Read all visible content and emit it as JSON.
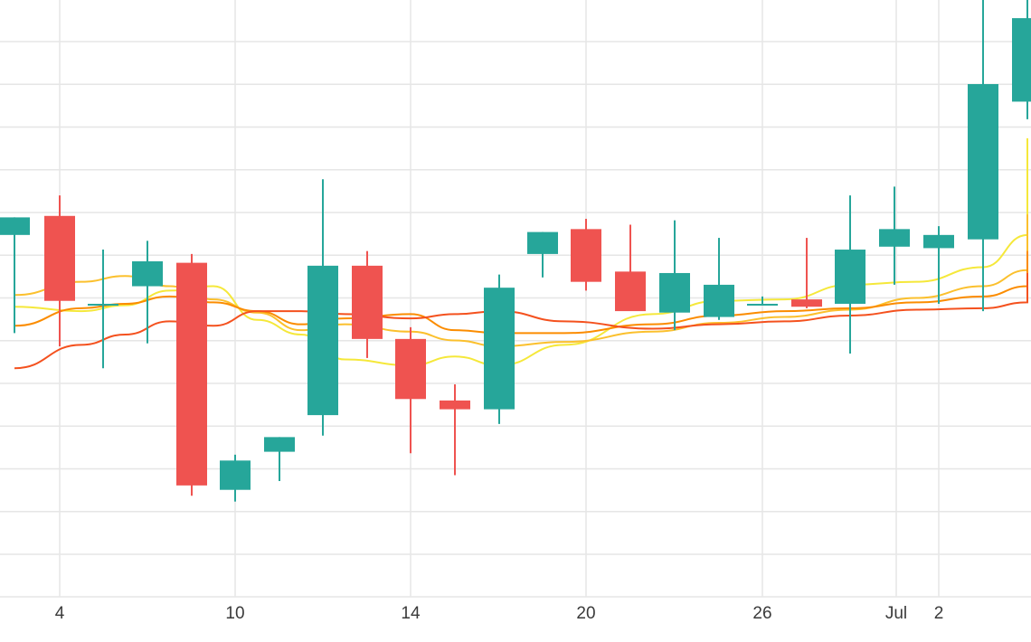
{
  "chart_data": {
    "type": "candlestick",
    "title": "",
    "xlabel": "",
    "ylabel": "",
    "x_axis": {
      "ticks": [
        {
          "day": 4,
          "label": "4"
        },
        {
          "day": 10,
          "label": "10"
        },
        {
          "day": 14,
          "label": "14"
        },
        {
          "day": 20,
          "label": "20"
        },
        {
          "day": 26,
          "label": "26"
        },
        {
          "day": 30,
          "label": "Jul"
        },
        {
          "day": 32,
          "label": "2"
        }
      ]
    },
    "grid": true,
    "up_color": "#26a69a",
    "down_color": "#ef5350",
    "candles": [
      {
        "day": 2,
        "open": 21.8,
        "high": 23.0,
        "low": 15.1,
        "close": 23.0
      },
      {
        "day": 3,
        "open": 23.1,
        "high": 24.5,
        "low": 14.2,
        "close": 17.3
      },
      {
        "day": 4,
        "open": 17.0,
        "high": 20.8,
        "low": 12.7,
        "close": 17.1
      },
      {
        "day": 5,
        "open": 18.3,
        "high": 21.4,
        "low": 14.4,
        "close": 20.0
      },
      {
        "day": 6,
        "open": 19.9,
        "high": 20.5,
        "low": 4.0,
        "close": 4.7
      },
      {
        "day": 7,
        "open": 4.4,
        "high": 6.8,
        "low": 3.6,
        "close": 6.4
      },
      {
        "day": 8,
        "open": 7.0,
        "high": 8.0,
        "low": 5.0,
        "close": 8.0
      },
      {
        "day": 9,
        "open": 9.5,
        "high": 25.6,
        "low": 8.1,
        "close": 19.7
      },
      {
        "day": 10,
        "open": 19.7,
        "high": 20.7,
        "low": 13.4,
        "close": 14.7
      },
      {
        "day": 11,
        "open": 14.7,
        "high": 15.5,
        "low": 6.9,
        "close": 10.6
      },
      {
        "day": 12,
        "open": 10.5,
        "high": 11.6,
        "low": 5.4,
        "close": 9.9
      },
      {
        "day": 13,
        "open": 9.9,
        "high": 19.1,
        "low": 8.9,
        "close": 18.2
      },
      {
        "day": 14,
        "open": 20.5,
        "high": 22.0,
        "low": 18.9,
        "close": 22.0
      },
      {
        "day": 15,
        "open": 22.2,
        "high": 22.9,
        "low": 18.0,
        "close": 18.6
      },
      {
        "day": 16,
        "open": 19.3,
        "high": 22.5,
        "low": 16.9,
        "close": 16.6
      },
      {
        "day": 17,
        "open": 16.5,
        "high": 22.8,
        "low": 15.3,
        "close": 19.2
      },
      {
        "day": 18,
        "open": 16.2,
        "high": 21.6,
        "low": 16.0,
        "close": 18.4
      },
      {
        "day": 19,
        "open": 17.1,
        "high": 17.6,
        "low": 17.1,
        "close": 17.1
      },
      {
        "day": 20,
        "open": 17.4,
        "high": 21.6,
        "low": 16.8,
        "close": 16.9
      },
      {
        "day": 21,
        "open": 17.1,
        "high": 24.5,
        "low": 13.7,
        "close": 20.8
      },
      {
        "day": 22,
        "open": 21.0,
        "high": 25.1,
        "low": 18.4,
        "close": 22.2
      },
      {
        "day": 23,
        "open": 20.9,
        "high": 22.4,
        "low": 17.1,
        "close": 21.8
      },
      {
        "day": 24,
        "open": 21.5,
        "high": 38.0,
        "low": 16.6,
        "close": 32.1
      },
      {
        "day": 25,
        "open": 30.9,
        "high": 38.0,
        "low": 29.7,
        "close": 36.6
      }
    ],
    "moving_averages": [
      {
        "color": "#f5e83a",
        "values": [
          [
            0.0,
            16.9
          ],
          [
            1.5,
            16.6
          ],
          [
            2.5,
            17.0
          ],
          [
            3.5,
            18.0
          ],
          [
            4.5,
            18.3
          ],
          [
            5.5,
            16.0
          ],
          [
            6.5,
            15.0
          ],
          [
            7.5,
            13.3
          ],
          [
            9.0,
            12.9
          ],
          [
            10.0,
            13.5
          ],
          [
            11.0,
            12.9
          ],
          [
            12.5,
            14.3
          ],
          [
            14.5,
            16.4
          ],
          [
            16.0,
            17.3
          ],
          [
            17.5,
            17.4
          ],
          [
            19.0,
            18.4
          ],
          [
            20.5,
            18.6
          ],
          [
            22.0,
            19.6
          ],
          [
            23.0,
            21.8
          ],
          [
            24.2,
            26.3
          ],
          [
            25.0,
            28.4
          ]
        ]
      },
      {
        "color": "#fbc02d",
        "values": [
          [
            0.0,
            17.7
          ],
          [
            1.5,
            18.6
          ],
          [
            2.5,
            19.0
          ],
          [
            3.5,
            18.3
          ],
          [
            4.5,
            17.4
          ],
          [
            5.5,
            16.5
          ],
          [
            6.5,
            15.3
          ],
          [
            7.5,
            15.7
          ],
          [
            9.0,
            15.2
          ],
          [
            10.0,
            14.6
          ],
          [
            11.0,
            14.2
          ],
          [
            12.5,
            14.5
          ],
          [
            14.5,
            15.2
          ],
          [
            16.0,
            15.8
          ],
          [
            17.5,
            16.2
          ],
          [
            19.0,
            16.7
          ],
          [
            20.5,
            17.5
          ],
          [
            22.0,
            18.3
          ],
          [
            23.0,
            19.4
          ],
          [
            24.2,
            21.3
          ],
          [
            25.0,
            23.2
          ]
        ]
      },
      {
        "color": "#fb8c00",
        "values": [
          [
            0.0,
            15.6
          ],
          [
            1.5,
            16.8
          ],
          [
            2.5,
            17.1
          ],
          [
            3.5,
            17.6
          ],
          [
            4.5,
            17.2
          ],
          [
            5.5,
            16.6
          ],
          [
            6.5,
            15.7
          ],
          [
            7.5,
            16.1
          ],
          [
            9.0,
            16.4
          ],
          [
            10.0,
            15.3
          ],
          [
            11.0,
            15.1
          ],
          [
            12.5,
            15.1
          ],
          [
            14.5,
            15.7
          ],
          [
            16.0,
            16.3
          ],
          [
            17.5,
            16.6
          ],
          [
            19.0,
            16.8
          ],
          [
            20.5,
            17.2
          ],
          [
            22.0,
            17.6
          ],
          [
            23.0,
            18.3
          ],
          [
            24.2,
            19.5
          ],
          [
            25.0,
            20.7
          ]
        ]
      },
      {
        "color": "#f4511e",
        "values": [
          [
            0.0,
            12.7
          ],
          [
            1.5,
            14.3
          ],
          [
            2.5,
            15.0
          ],
          [
            3.5,
            15.9
          ],
          [
            4.5,
            15.6
          ],
          [
            5.5,
            16.6
          ],
          [
            6.5,
            16.6
          ],
          [
            7.5,
            16.4
          ],
          [
            9.0,
            16.1
          ],
          [
            10.0,
            16.4
          ],
          [
            11.0,
            16.6
          ],
          [
            12.5,
            15.9
          ],
          [
            14.5,
            15.4
          ],
          [
            16.0,
            15.7
          ],
          [
            17.5,
            15.9
          ],
          [
            19.0,
            16.3
          ],
          [
            20.5,
            16.7
          ],
          [
            22.0,
            16.8
          ],
          [
            23.0,
            17.2
          ],
          [
            24.2,
            18.2
          ],
          [
            25.0,
            19.2
          ]
        ]
      }
    ]
  }
}
